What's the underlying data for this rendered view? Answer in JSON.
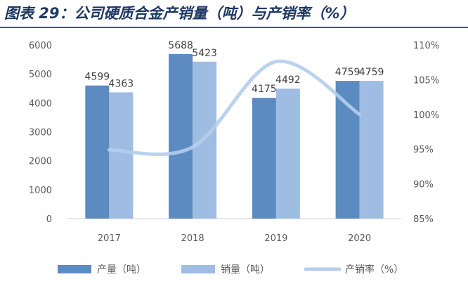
{
  "title": "图表 29：公司硬质合金产销量（吨）与产销率（%）",
  "chart_data": {
    "type": "bar",
    "categories": [
      "2017",
      "2018",
      "2019",
      "2020"
    ],
    "series": [
      {
        "name": "产量（吨）",
        "type": "bar",
        "axis": "left",
        "color": "#5b8bc0",
        "values": [
          4599,
          5688,
          4175,
          4759
        ]
      },
      {
        "name": "销量（吨）",
        "type": "bar",
        "axis": "left",
        "color": "#9fbde3",
        "values": [
          4363,
          5423,
          4492,
          4759
        ]
      },
      {
        "name": "产销率（%）",
        "type": "line",
        "axis": "right",
        "color": "#b4cdec",
        "smooth": true,
        "values": [
          94.9,
          95.3,
          107.6,
          100.0
        ]
      }
    ],
    "ylim": [
      0,
      6000
    ],
    "yticks": [
      "0",
      "1000",
      "2000",
      "3000",
      "4000",
      "5000",
      "6000"
    ],
    "y2lim": [
      85,
      110
    ],
    "y2ticks": [
      "85%",
      "90%",
      "95%",
      "100%",
      "105%",
      "110%"
    ],
    "data_labels": {
      "产量（吨）": [
        "4599",
        "5688",
        "4175",
        "4759"
      ],
      "销量（吨）": [
        "4363",
        "5423",
        "4492",
        "4759"
      ]
    },
    "grid": false,
    "legend_position": "bottom"
  }
}
